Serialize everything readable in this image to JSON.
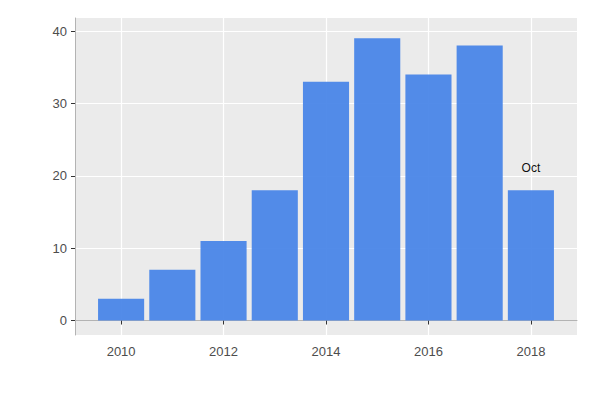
{
  "chart_data": {
    "type": "bar",
    "x": [
      2010,
      2011,
      2012,
      2013,
      2014,
      2015,
      2016,
      2017,
      2018
    ],
    "values": [
      3,
      7,
      11,
      18,
      33,
      39,
      34,
      38,
      18
    ],
    "color": "#4a86e8",
    "xlim": [
      2009.1,
      2018.9
    ],
    "xticks": [
      2010,
      2012,
      2014,
      2016,
      2018
    ],
    "ylim": [
      -2,
      41.8
    ],
    "yticks": [
      0,
      10,
      20,
      30,
      40
    ],
    "grid": true,
    "annotations": [
      {
        "x": 2018,
        "text": "Oct"
      }
    ]
  }
}
